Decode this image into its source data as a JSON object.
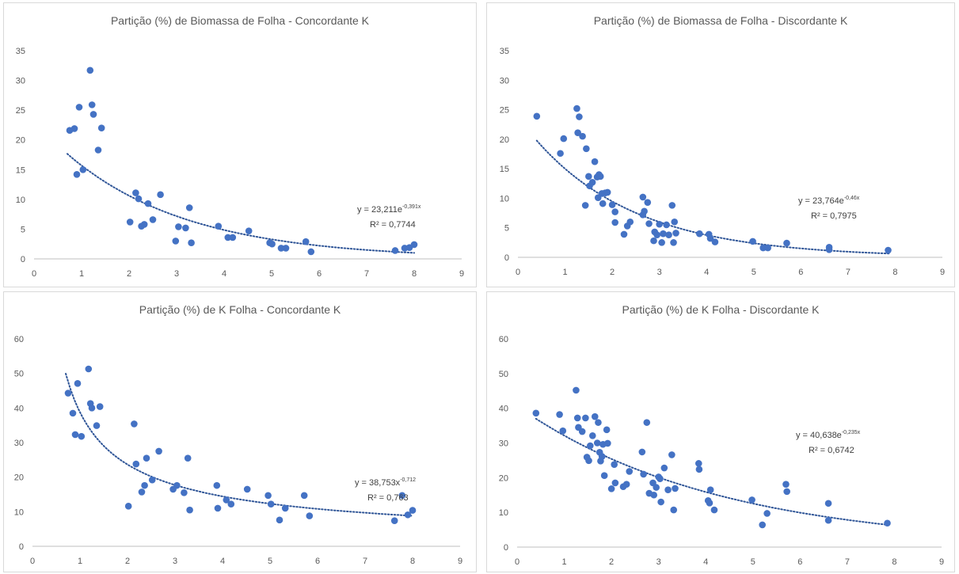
{
  "charts": [
    {
      "id": "c1",
      "title": "Partição (%) de Biomassa de Folha - Concordante K",
      "chart_data": {
        "type": "scatter",
        "title": "Partição (%) de Biomassa de Folha - Concordante K",
        "xlim": [
          0,
          9
        ],
        "ylim": [
          0,
          35
        ],
        "xticks": [
          0,
          1,
          2,
          3,
          4,
          5,
          6,
          7,
          8,
          9
        ],
        "yticks": [
          0,
          5,
          10,
          15,
          20,
          25,
          30,
          35
        ],
        "grid": false,
        "marker_color": "#4472c4",
        "trendline": {
          "kind": "exp",
          "a": 23.211,
          "b": -0.391,
          "x_range": [
            0.7,
            8.0
          ],
          "style": "dotted"
        },
        "equation": {
          "base": "y = 23,211e",
          "exp": "-0,391x",
          "r2": "R² = 0,7744"
        },
        "points": [
          [
            0.75,
            21.6
          ],
          [
            0.85,
            21.9
          ],
          [
            0.9,
            14.2
          ],
          [
            0.95,
            25.5
          ],
          [
            1.03,
            15.0
          ],
          [
            1.18,
            31.7
          ],
          [
            1.22,
            25.9
          ],
          [
            1.25,
            24.3
          ],
          [
            1.35,
            18.3
          ],
          [
            1.42,
            22.0
          ],
          [
            2.02,
            6.2
          ],
          [
            2.14,
            11.1
          ],
          [
            2.2,
            10.1
          ],
          [
            2.26,
            5.5
          ],
          [
            2.32,
            5.8
          ],
          [
            2.4,
            9.3
          ],
          [
            2.5,
            6.6
          ],
          [
            2.66,
            10.8
          ],
          [
            2.98,
            3.0
          ],
          [
            3.04,
            5.4
          ],
          [
            3.19,
            5.2
          ],
          [
            3.27,
            8.6
          ],
          [
            3.31,
            2.7
          ],
          [
            3.88,
            5.5
          ],
          [
            4.08,
            3.6
          ],
          [
            4.18,
            3.6
          ],
          [
            4.52,
            4.7
          ],
          [
            4.96,
            2.7
          ],
          [
            5.01,
            2.5
          ],
          [
            5.2,
            1.8
          ],
          [
            5.3,
            1.8
          ],
          [
            5.72,
            2.9
          ],
          [
            5.83,
            1.2
          ],
          [
            7.6,
            1.4
          ],
          [
            7.8,
            1.8
          ],
          [
            7.9,
            1.9
          ],
          [
            8.0,
            2.4
          ]
        ]
      }
    },
    {
      "id": "c2",
      "title": "Partição (%) de Biomassa de Folha - Discordante K",
      "chart_data": {
        "type": "scatter",
        "title": "Partição (%) de Biomassa de Folha - Discordante K",
        "xlim": [
          0,
          9
        ],
        "ylim": [
          0,
          35
        ],
        "xticks": [
          0,
          1,
          2,
          3,
          4,
          5,
          6,
          7,
          8,
          9
        ],
        "yticks": [
          0,
          5,
          10,
          15,
          20,
          25,
          30,
          35
        ],
        "grid": false,
        "marker_color": "#4472c4",
        "trendline": {
          "kind": "exp",
          "a": 23.764,
          "b": -0.46,
          "x_range": [
            0.4,
            7.9
          ],
          "style": "dotted"
        },
        "equation": {
          "base": "y = 23,764e",
          "exp": "-0,46x",
          "r2": "R² = 0,7975"
        },
        "points": [
          [
            0.4,
            23.9
          ],
          [
            0.9,
            17.6
          ],
          [
            0.97,
            20.1
          ],
          [
            1.25,
            25.2
          ],
          [
            1.27,
            21.1
          ],
          [
            1.3,
            23.8
          ],
          [
            1.37,
            20.5
          ],
          [
            1.45,
            18.4
          ],
          [
            1.43,
            8.8
          ],
          [
            1.5,
            13.7
          ],
          [
            1.52,
            12.1
          ],
          [
            1.58,
            12.7
          ],
          [
            1.63,
            16.2
          ],
          [
            1.68,
            13.6
          ],
          [
            1.7,
            10.1
          ],
          [
            1.72,
            14.0
          ],
          [
            1.75,
            13.7
          ],
          [
            1.78,
            10.8
          ],
          [
            1.8,
            9.1
          ],
          [
            1.85,
            10.9
          ],
          [
            1.9,
            11.0
          ],
          [
            2.0,
            8.9
          ],
          [
            2.06,
            7.7
          ],
          [
            2.06,
            5.9
          ],
          [
            2.25,
            3.9
          ],
          [
            2.32,
            5.3
          ],
          [
            2.38,
            6.0
          ],
          [
            2.65,
            10.2
          ],
          [
            2.65,
            7.2
          ],
          [
            2.68,
            7.8
          ],
          [
            2.75,
            9.3
          ],
          [
            2.78,
            5.7
          ],
          [
            2.88,
            2.8
          ],
          [
            2.9,
            4.3
          ],
          [
            2.95,
            3.8
          ],
          [
            3.0,
            5.6
          ],
          [
            3.05,
            2.5
          ],
          [
            3.08,
            4.0
          ],
          [
            3.15,
            5.5
          ],
          [
            3.2,
            3.8
          ],
          [
            3.27,
            8.8
          ],
          [
            3.3,
            2.5
          ],
          [
            3.32,
            6.0
          ],
          [
            3.35,
            4.1
          ],
          [
            3.85,
            4.0
          ],
          [
            4.05,
            3.9
          ],
          [
            4.08,
            3.2
          ],
          [
            4.18,
            2.6
          ],
          [
            4.98,
            2.7
          ],
          [
            5.2,
            1.6
          ],
          [
            5.3,
            1.6
          ],
          [
            5.7,
            2.4
          ],
          [
            6.6,
            1.7
          ],
          [
            6.6,
            1.3
          ],
          [
            7.85,
            1.2
          ]
        ]
      }
    },
    {
      "id": "c3",
      "title": "Partição (%) de K Folha - Concordante K",
      "chart_data": {
        "type": "scatter",
        "title": "Partição (%) de K Folha - Concordante K",
        "xlim": [
          0,
          9
        ],
        "ylim": [
          0,
          60
        ],
        "xticks": [
          0,
          1,
          2,
          3,
          4,
          5,
          6,
          7,
          8,
          9
        ],
        "yticks": [
          0,
          10,
          20,
          30,
          40,
          50,
          60
        ],
        "grid": false,
        "marker_color": "#4472c4",
        "trendline": {
          "kind": "pow",
          "a": 38.753,
          "b": -0.712,
          "x_range": [
            0.7,
            8.0
          ],
          "style": "dotted"
        },
        "equation": {
          "base": "y = 38,753x",
          "exp": "-0,712",
          "r2": "R² = 0,763"
        },
        "points": [
          [
            0.75,
            44.3
          ],
          [
            0.85,
            38.5
          ],
          [
            0.9,
            32.3
          ],
          [
            0.95,
            47.1
          ],
          [
            1.03,
            31.8
          ],
          [
            1.18,
            51.3
          ],
          [
            1.22,
            41.3
          ],
          [
            1.25,
            40.0
          ],
          [
            1.35,
            34.9
          ],
          [
            1.42,
            40.4
          ],
          [
            2.02,
            11.6
          ],
          [
            2.14,
            35.4
          ],
          [
            2.18,
            23.8
          ],
          [
            2.3,
            15.7
          ],
          [
            2.36,
            17.6
          ],
          [
            2.4,
            25.5
          ],
          [
            2.52,
            19.2
          ],
          [
            2.66,
            27.5
          ],
          [
            2.96,
            16.5
          ],
          [
            3.04,
            17.6
          ],
          [
            3.19,
            15.5
          ],
          [
            3.27,
            25.5
          ],
          [
            3.31,
            10.5
          ],
          [
            3.88,
            17.6
          ],
          [
            3.9,
            11.0
          ],
          [
            4.08,
            13.4
          ],
          [
            4.18,
            12.2
          ],
          [
            4.52,
            16.5
          ],
          [
            4.96,
            14.7
          ],
          [
            5.02,
            12.2
          ],
          [
            5.2,
            7.6
          ],
          [
            5.32,
            11.0
          ],
          [
            5.72,
            14.7
          ],
          [
            5.83,
            8.8
          ],
          [
            7.62,
            7.4
          ],
          [
            7.78,
            14.7
          ],
          [
            7.9,
            9.1
          ],
          [
            8.0,
            10.4
          ]
        ]
      }
    },
    {
      "id": "c4",
      "title": "Partição (%) de K Folha - Discordante K",
      "chart_data": {
        "type": "scatter",
        "title": "Partição (%) de K Folha - Discordante K",
        "xlim": [
          0,
          9
        ],
        "ylim": [
          0,
          60
        ],
        "xticks": [
          0,
          1,
          2,
          3,
          4,
          5,
          6,
          7,
          8,
          9
        ],
        "yticks": [
          0,
          10,
          20,
          30,
          40,
          50,
          60
        ],
        "grid": false,
        "marker_color": "#4472c4",
        "trendline": {
          "kind": "exp",
          "a": 40.638,
          "b": -0.235,
          "x_range": [
            0.4,
            7.9
          ],
          "style": "dotted"
        },
        "equation": {
          "base": "y = 40,638e",
          "exp": "-0,235x",
          "r2": "R² = 0,6742"
        },
        "points": [
          [
            0.4,
            38.6
          ],
          [
            0.9,
            38.2
          ],
          [
            0.97,
            33.5
          ],
          [
            1.25,
            45.2
          ],
          [
            1.28,
            37.2
          ],
          [
            1.3,
            34.5
          ],
          [
            1.38,
            33.3
          ],
          [
            1.45,
            37.2
          ],
          [
            1.48,
            25.9
          ],
          [
            1.52,
            24.9
          ],
          [
            1.55,
            29.2
          ],
          [
            1.6,
            32.1
          ],
          [
            1.65,
            37.6
          ],
          [
            1.7,
            30.0
          ],
          [
            1.72,
            35.9
          ],
          [
            1.75,
            27.3
          ],
          [
            1.77,
            24.8
          ],
          [
            1.8,
            26.1
          ],
          [
            1.82,
            29.6
          ],
          [
            1.85,
            20.6
          ],
          [
            1.9,
            33.8
          ],
          [
            1.92,
            29.9
          ],
          [
            2.0,
            16.8
          ],
          [
            2.06,
            23.8
          ],
          [
            2.08,
            18.5
          ],
          [
            2.25,
            17.4
          ],
          [
            2.32,
            18.1
          ],
          [
            2.38,
            21.8
          ],
          [
            2.65,
            27.4
          ],
          [
            2.68,
            21.0
          ],
          [
            2.75,
            35.9
          ],
          [
            2.8,
            15.5
          ],
          [
            2.88,
            18.5
          ],
          [
            2.9,
            15.0
          ],
          [
            2.95,
            17.2
          ],
          [
            3.0,
            20.2
          ],
          [
            3.03,
            19.7
          ],
          [
            3.05,
            13.0
          ],
          [
            3.12,
            22.8
          ],
          [
            3.2,
            16.5
          ],
          [
            3.28,
            26.6
          ],
          [
            3.32,
            10.7
          ],
          [
            3.35,
            16.9
          ],
          [
            3.85,
            24.1
          ],
          [
            3.86,
            22.4
          ],
          [
            4.05,
            13.4
          ],
          [
            4.08,
            12.7
          ],
          [
            4.1,
            16.5
          ],
          [
            4.18,
            10.7
          ],
          [
            4.98,
            13.6
          ],
          [
            5.2,
            6.4
          ],
          [
            5.3,
            9.7
          ],
          [
            5.7,
            18.1
          ],
          [
            5.72,
            16.0
          ],
          [
            6.6,
            12.6
          ],
          [
            6.6,
            7.7
          ],
          [
            7.85,
            6.9
          ]
        ]
      }
    }
  ]
}
